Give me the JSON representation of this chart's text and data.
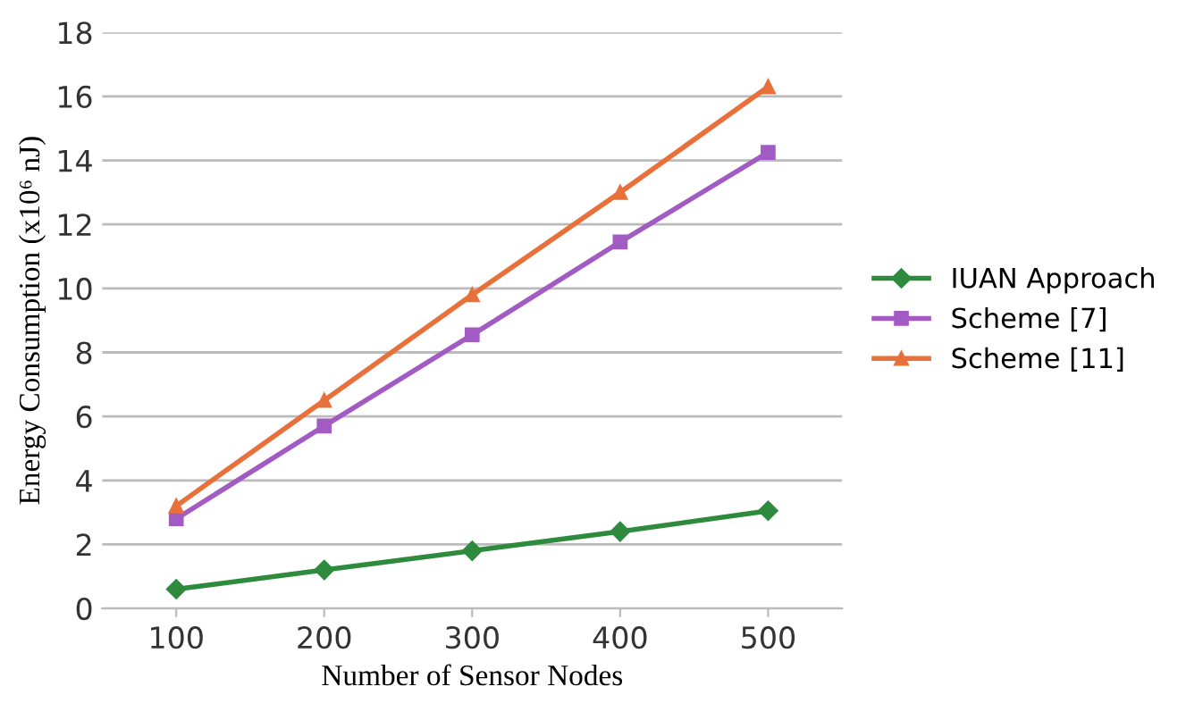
{
  "chart_data": {
    "type": "line",
    "xlabel": "Number of Sensor Nodes",
    "ylabel": "Energy Consumption (x10⁶ nJ)",
    "categories": [
      "100",
      "200",
      "300",
      "400",
      "500"
    ],
    "series": [
      {
        "name": "IUAN Approach",
        "color": "#2e8b3e",
        "marker": "diamond",
        "values": [
          0.6,
          1.2,
          1.8,
          2.4,
          3.05
        ]
      },
      {
        "name": "Scheme [7]",
        "color": "#a35bc4",
        "marker": "square",
        "values": [
          2.8,
          5.7,
          8.55,
          11.45,
          14.25
        ]
      },
      {
        "name": "Scheme [11]",
        "color": "#e8703a",
        "marker": "triangle",
        "values": [
          3.2,
          6.5,
          9.8,
          13.0,
          16.3
        ]
      }
    ],
    "ylim": [
      0,
      18
    ],
    "yticks": [
      0,
      2,
      4,
      6,
      8,
      10,
      12,
      14,
      16,
      18
    ],
    "grid": "y",
    "legend": "right",
    "line_style": "solid"
  }
}
